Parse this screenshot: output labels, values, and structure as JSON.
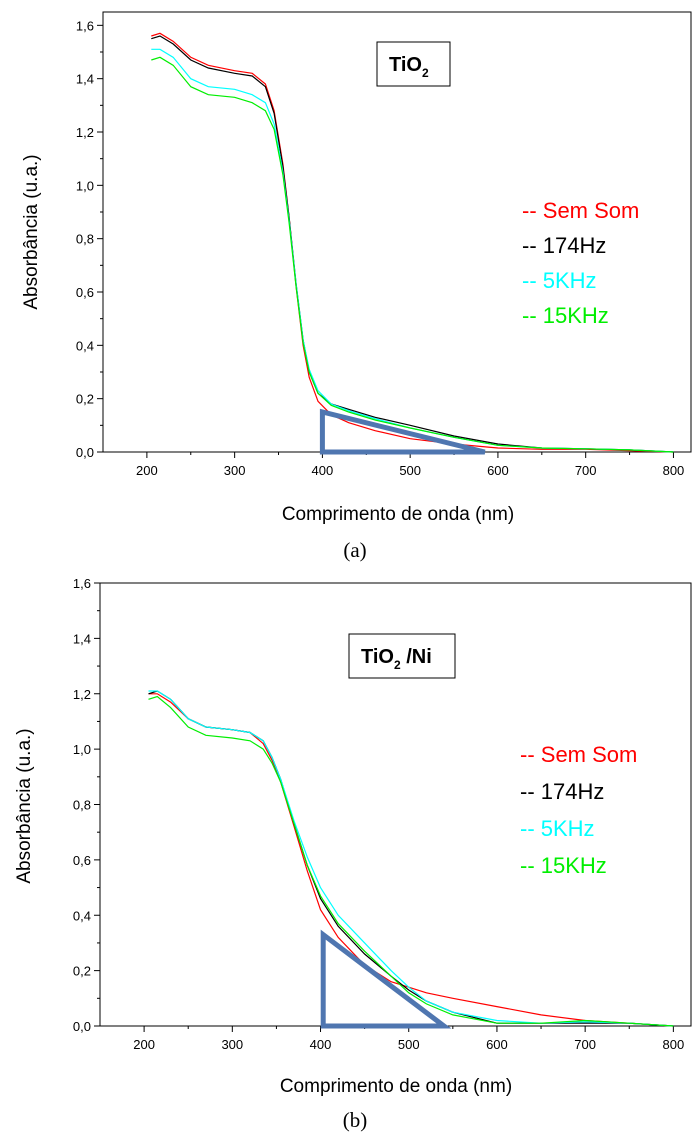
{
  "chart_data": [
    {
      "type": "line",
      "badge": {
        "main": "TiO",
        "sub": "2",
        "suffix": ""
      },
      "xlabel": "Comprimento de onda (nm)",
      "ylabel": "Absorbância (u.a.)",
      "caption": "(a)",
      "xlim": [
        150,
        820
      ],
      "ylim": [
        0,
        1.65
      ],
      "xticks": [
        200,
        300,
        400,
        500,
        600,
        700,
        800
      ],
      "yticks": [
        "0,0",
        "0,2",
        "0,4",
        "0,6",
        "0,8",
        "1,0",
        "1,2",
        "1,4",
        "1,6"
      ],
      "legend_position": "right",
      "series": [
        {
          "name": "-- Sem Som",
          "color": "#ff0000",
          "x": [
            205,
            215,
            230,
            250,
            270,
            300,
            320,
            335,
            345,
            355,
            362,
            370,
            378,
            385,
            395,
            410,
            430,
            460,
            500,
            550,
            600,
            650,
            700,
            750,
            800
          ],
          "y": [
            1.56,
            1.57,
            1.54,
            1.48,
            1.45,
            1.43,
            1.42,
            1.38,
            1.28,
            1.08,
            0.88,
            0.62,
            0.4,
            0.28,
            0.19,
            0.14,
            0.11,
            0.08,
            0.05,
            0.03,
            0.015,
            0.01,
            0.01,
            0.005,
            0.0
          ]
        },
        {
          "name": "-- 174Hz",
          "color": "#000000",
          "x": [
            205,
            215,
            230,
            250,
            270,
            300,
            320,
            335,
            345,
            355,
            362,
            370,
            378,
            385,
            395,
            410,
            430,
            460,
            500,
            550,
            600,
            650,
            700,
            750,
            800
          ],
          "y": [
            1.55,
            1.56,
            1.53,
            1.47,
            1.44,
            1.42,
            1.41,
            1.37,
            1.27,
            1.07,
            0.88,
            0.63,
            0.42,
            0.3,
            0.22,
            0.18,
            0.16,
            0.13,
            0.1,
            0.06,
            0.03,
            0.015,
            0.012,
            0.008,
            0.0
          ]
        },
        {
          "name": "-- 5KHz",
          "color": "#00ffff",
          "x": [
            205,
            215,
            230,
            250,
            270,
            300,
            320,
            335,
            345,
            355,
            362,
            370,
            378,
            385,
            395,
            410,
            430,
            460,
            500,
            550,
            600,
            650,
            700,
            750,
            800
          ],
          "y": [
            1.51,
            1.51,
            1.48,
            1.4,
            1.37,
            1.36,
            1.34,
            1.31,
            1.23,
            1.05,
            0.87,
            0.63,
            0.42,
            0.31,
            0.23,
            0.18,
            0.155,
            0.125,
            0.09,
            0.055,
            0.025,
            0.015,
            0.012,
            0.008,
            0.0
          ]
        },
        {
          "name": "-- 15KHz",
          "color": "#00ee00",
          "x": [
            205,
            215,
            230,
            250,
            270,
            300,
            320,
            335,
            345,
            355,
            362,
            370,
            378,
            385,
            395,
            410,
            430,
            460,
            500,
            550,
            600,
            650,
            700,
            750,
            800
          ],
          "y": [
            1.47,
            1.48,
            1.45,
            1.37,
            1.34,
            1.33,
            1.31,
            1.28,
            1.21,
            1.04,
            0.86,
            0.62,
            0.41,
            0.3,
            0.22,
            0.175,
            0.15,
            0.12,
            0.09,
            0.055,
            0.025,
            0.015,
            0.012,
            0.008,
            0.0
          ]
        }
      ],
      "triangle": {
        "x": [
          400,
          400,
          585
        ],
        "y": [
          0.15,
          0.0,
          0.0
        ],
        "color": "#4f76b0"
      }
    },
    {
      "type": "line",
      "badge": {
        "main": "TiO",
        "sub": "2",
        "suffix": " /Ni"
      },
      "xlabel": "Comprimento de onda (nm)",
      "ylabel": "Absorbância (u.a.)",
      "caption": "(b)",
      "xlim": [
        150,
        820
      ],
      "ylim": [
        0,
        1.6
      ],
      "xticks": [
        200,
        300,
        400,
        500,
        600,
        700,
        800
      ],
      "yticks": [
        "0,0",
        "0,2",
        "0,4",
        "0,6",
        "0,8",
        "1,0",
        "1,2",
        "1,4",
        "1,6"
      ],
      "legend_position": "right",
      "series": [
        {
          "name": "-- Sem Som",
          "color": "#ff0000",
          "x": [
            205,
            215,
            230,
            250,
            270,
            300,
            320,
            335,
            345,
            355,
            370,
            385,
            400,
            420,
            450,
            480,
            500,
            520,
            550,
            600,
            650,
            700,
            750,
            800
          ],
          "y": [
            1.2,
            1.2,
            1.17,
            1.11,
            1.08,
            1.07,
            1.06,
            1.02,
            0.96,
            0.88,
            0.72,
            0.56,
            0.42,
            0.32,
            0.22,
            0.16,
            0.14,
            0.12,
            0.1,
            0.07,
            0.04,
            0.02,
            0.01,
            0.0
          ]
        },
        {
          "name": "-- 174Hz",
          "color": "#000000",
          "x": [
            205,
            215,
            230,
            250,
            270,
            300,
            320,
            335,
            345,
            355,
            370,
            385,
            400,
            420,
            450,
            480,
            500,
            520,
            550,
            600,
            650,
            700,
            750,
            800
          ],
          "y": [
            1.2,
            1.21,
            1.18,
            1.11,
            1.08,
            1.07,
            1.06,
            1.03,
            0.97,
            0.89,
            0.73,
            0.58,
            0.46,
            0.36,
            0.26,
            0.18,
            0.13,
            0.09,
            0.05,
            0.01,
            0.01,
            0.01,
            0.01,
            0.0
          ]
        },
        {
          "name": "-- 5KHz",
          "color": "#00ffff",
          "x": [
            205,
            215,
            230,
            250,
            270,
            300,
            320,
            335,
            345,
            355,
            370,
            385,
            400,
            420,
            450,
            480,
            500,
            520,
            550,
            600,
            650,
            700,
            750,
            800
          ],
          "y": [
            1.21,
            1.21,
            1.18,
            1.11,
            1.08,
            1.07,
            1.06,
            1.03,
            0.97,
            0.89,
            0.74,
            0.61,
            0.5,
            0.4,
            0.3,
            0.2,
            0.14,
            0.09,
            0.05,
            0.02,
            0.01,
            0.015,
            0.01,
            0.0
          ]
        },
        {
          "name": "-- 15KHz",
          "color": "#00ee00",
          "x": [
            205,
            215,
            230,
            250,
            270,
            300,
            320,
            335,
            345,
            355,
            370,
            385,
            400,
            420,
            450,
            480,
            500,
            520,
            550,
            600,
            650,
            700,
            750,
            800
          ],
          "y": [
            1.18,
            1.19,
            1.15,
            1.08,
            1.05,
            1.04,
            1.03,
            1.0,
            0.95,
            0.88,
            0.73,
            0.58,
            0.47,
            0.37,
            0.27,
            0.18,
            0.12,
            0.08,
            0.04,
            0.01,
            0.01,
            0.02,
            0.01,
            0.0
          ]
        }
      ],
      "triangle": {
        "x": [
          403,
          403,
          540
        ],
        "y": [
          0.33,
          0.0,
          0.0
        ],
        "color": "#4f76b0"
      }
    }
  ]
}
